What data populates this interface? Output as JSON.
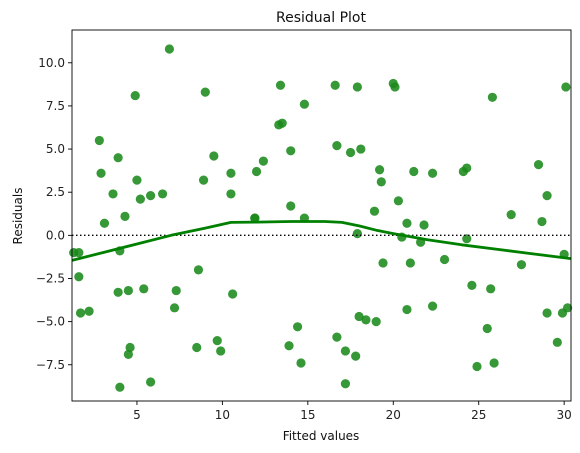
{
  "chart_data": {
    "type": "scatter",
    "title": "Residual Plot",
    "xlabel": "Fitted values",
    "ylabel": "Residuals",
    "xlim": [
      1.2,
      30.4
    ],
    "ylim": [
      -9.6,
      11.9
    ],
    "x_ticks": [
      5,
      10,
      15,
      20,
      25,
      30
    ],
    "x_tick_labels": [
      "5",
      "10",
      "15",
      "20",
      "25",
      "30"
    ],
    "y_ticks": [
      -7.5,
      -5.0,
      -2.5,
      0.0,
      2.5,
      5.0,
      7.5,
      10.0
    ],
    "y_tick_labels": [
      "−7.5",
      "−5.0",
      "−2.5",
      "0.0",
      "2.5",
      "5.0",
      "7.5",
      "10.0"
    ],
    "grid": false,
    "reference_line": {
      "y": 0,
      "style": "dotted",
      "color": "#000000"
    },
    "colors": {
      "points": "#1a8a1a",
      "lowess": "#008000"
    },
    "points": [
      [
        1.3,
        -1.0
      ],
      [
        1.6,
        -1.0
      ],
      [
        1.6,
        -2.4
      ],
      [
        1.7,
        -4.5
      ],
      [
        2.2,
        -4.4
      ],
      [
        2.8,
        5.5
      ],
      [
        2.9,
        3.6
      ],
      [
        3.1,
        0.7
      ],
      [
        3.6,
        2.4
      ],
      [
        3.9,
        4.5
      ],
      [
        3.9,
        -3.3
      ],
      [
        4.0,
        -0.9
      ],
      [
        4.0,
        -8.8
      ],
      [
        4.3,
        1.1
      ],
      [
        4.5,
        -6.9
      ],
      [
        4.5,
        -3.2
      ],
      [
        4.6,
        -6.5
      ],
      [
        4.9,
        8.1
      ],
      [
        5.0,
        3.2
      ],
      [
        5.2,
        2.1
      ],
      [
        5.4,
        -3.1
      ],
      [
        5.8,
        2.3
      ],
      [
        5.8,
        -8.5
      ],
      [
        6.5,
        2.4
      ],
      [
        6.9,
        10.8
      ],
      [
        7.2,
        -4.2
      ],
      [
        7.3,
        -3.2
      ],
      [
        8.5,
        -6.5
      ],
      [
        8.6,
        -2.0
      ],
      [
        8.9,
        3.2
      ],
      [
        9.0,
        8.3
      ],
      [
        9.5,
        4.6
      ],
      [
        9.7,
        -6.1
      ],
      [
        9.9,
        -6.7
      ],
      [
        10.5,
        3.6
      ],
      [
        10.5,
        2.4
      ],
      [
        10.6,
        -3.4
      ],
      [
        11.9,
        1.0
      ],
      [
        11.9,
        1.0
      ],
      [
        12.0,
        3.7
      ],
      [
        12.4,
        4.3
      ],
      [
        13.3,
        6.4
      ],
      [
        13.4,
        8.7
      ],
      [
        13.5,
        6.5
      ],
      [
        13.9,
        -6.4
      ],
      [
        14.0,
        4.9
      ],
      [
        14.0,
        1.7
      ],
      [
        14.4,
        -5.3
      ],
      [
        14.6,
        -7.4
      ],
      [
        14.8,
        1.0
      ],
      [
        14.8,
        7.6
      ],
      [
        16.6,
        8.7
      ],
      [
        16.7,
        -5.9
      ],
      [
        16.7,
        5.2
      ],
      [
        17.2,
        -8.6
      ],
      [
        17.2,
        -6.7
      ],
      [
        17.5,
        4.8
      ],
      [
        17.8,
        -7.0
      ],
      [
        17.9,
        8.6
      ],
      [
        17.9,
        0.1
      ],
      [
        18.0,
        -4.7
      ],
      [
        18.1,
        5.0
      ],
      [
        18.4,
        -4.9
      ],
      [
        18.9,
        1.4
      ],
      [
        19.0,
        -5.0
      ],
      [
        19.2,
        3.8
      ],
      [
        19.3,
        3.1
      ],
      [
        19.4,
        -1.6
      ],
      [
        20.0,
        8.8
      ],
      [
        20.1,
        8.6
      ],
      [
        20.3,
        2.0
      ],
      [
        20.5,
        -0.1
      ],
      [
        20.8,
        0.7
      ],
      [
        20.8,
        -4.3
      ],
      [
        21.0,
        -1.6
      ],
      [
        21.2,
        3.7
      ],
      [
        21.6,
        -0.4
      ],
      [
        21.8,
        0.6
      ],
      [
        22.3,
        -4.1
      ],
      [
        22.3,
        3.6
      ],
      [
        23.0,
        -1.4
      ],
      [
        24.1,
        3.7
      ],
      [
        24.3,
        3.9
      ],
      [
        24.3,
        -0.2
      ],
      [
        24.6,
        -2.9
      ],
      [
        24.9,
        -7.6
      ],
      [
        25.5,
        -5.4
      ],
      [
        25.7,
        -3.1
      ],
      [
        25.8,
        8.0
      ],
      [
        25.9,
        -7.4
      ],
      [
        26.9,
        1.2
      ],
      [
        27.5,
        -1.7
      ],
      [
        28.5,
        4.1
      ],
      [
        28.7,
        0.8
      ],
      [
        29.0,
        2.3
      ],
      [
        29.0,
        -4.5
      ],
      [
        29.6,
        -6.2
      ],
      [
        29.9,
        -4.5
      ],
      [
        30.0,
        -1.1
      ],
      [
        30.1,
        8.6
      ],
      [
        30.2,
        -4.2
      ]
    ],
    "lowess": [
      [
        1.2,
        -1.45
      ],
      [
        3.0,
        -1.0
      ],
      [
        5.0,
        -0.5
      ],
      [
        7.0,
        0.0
      ],
      [
        9.0,
        0.42
      ],
      [
        10.5,
        0.75
      ],
      [
        12.0,
        0.77
      ],
      [
        14.0,
        0.8
      ],
      [
        16.0,
        0.8
      ],
      [
        17.0,
        0.75
      ],
      [
        18.0,
        0.55
      ],
      [
        19.0,
        0.3
      ],
      [
        20.0,
        0.1
      ],
      [
        22.0,
        -0.25
      ],
      [
        24.0,
        -0.55
      ],
      [
        26.0,
        -0.8
      ],
      [
        28.0,
        -1.05
      ],
      [
        30.4,
        -1.35
      ]
    ]
  }
}
